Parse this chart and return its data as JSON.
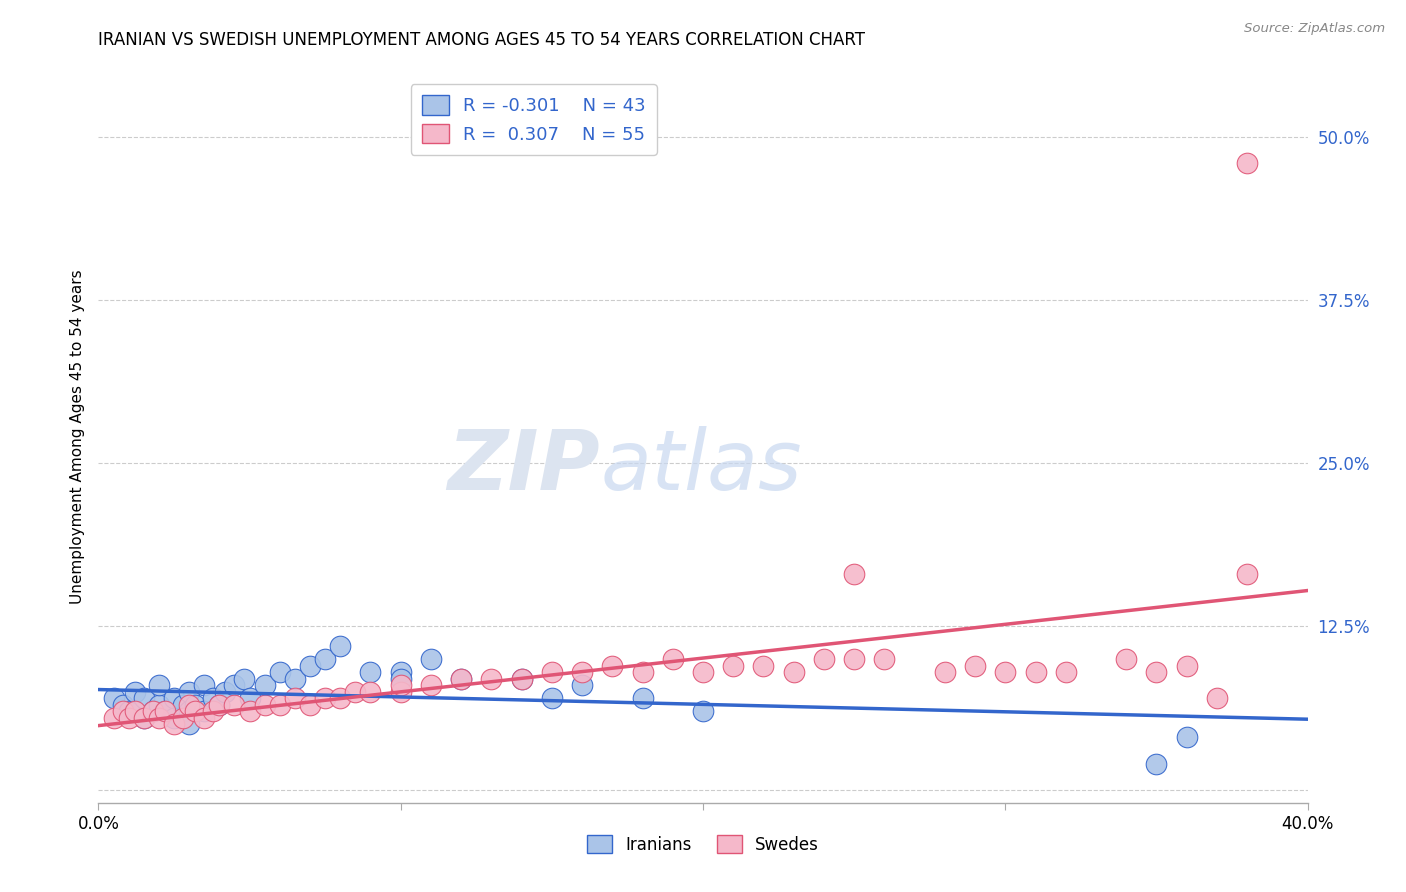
{
  "title": "IRANIAN VS SWEDISH UNEMPLOYMENT AMONG AGES 45 TO 54 YEARS CORRELATION CHART",
  "source": "Source: ZipAtlas.com",
  "ylabel": "Unemployment Among Ages 45 to 54 years",
  "xlim": [
    0.0,
    0.4
  ],
  "ylim": [
    -0.01,
    0.55
  ],
  "yticks": [
    0.0,
    0.125,
    0.25,
    0.375,
    0.5
  ],
  "ytick_labels": [
    "",
    "12.5%",
    "25.0%",
    "37.5%",
    "50.0%"
  ],
  "xticks": [
    0.0,
    0.1,
    0.2,
    0.3,
    0.4
  ],
  "xtick_labels": [
    "0.0%",
    "",
    "",
    "",
    "40.0%"
  ],
  "background_color": "#ffffff",
  "grid_color": "#cccccc",
  "iranian_color": "#aac4e8",
  "swedish_color": "#f5b8ca",
  "iranian_line_color": "#3366cc",
  "swedish_line_color": "#e05575",
  "legend_iranian_r": "-0.301",
  "legend_iranian_n": "43",
  "legend_swedish_r": "0.307",
  "legend_swedish_n": "55",
  "tick_color": "#3366cc",
  "iranians_x": [
    0.005,
    0.008,
    0.01,
    0.012,
    0.015,
    0.015,
    0.018,
    0.02,
    0.02,
    0.022,
    0.025,
    0.025,
    0.028,
    0.03,
    0.03,
    0.03,
    0.032,
    0.035,
    0.035,
    0.038,
    0.04,
    0.042,
    0.045,
    0.048,
    0.05,
    0.055,
    0.06,
    0.065,
    0.07,
    0.075,
    0.08,
    0.09,
    0.1,
    0.1,
    0.11,
    0.12,
    0.14,
    0.15,
    0.16,
    0.18,
    0.2,
    0.35,
    0.36
  ],
  "iranians_y": [
    0.07,
    0.065,
    0.06,
    0.075,
    0.07,
    0.055,
    0.06,
    0.065,
    0.08,
    0.06,
    0.07,
    0.055,
    0.065,
    0.075,
    0.06,
    0.05,
    0.065,
    0.08,
    0.06,
    0.07,
    0.065,
    0.075,
    0.08,
    0.085,
    0.07,
    0.08,
    0.09,
    0.085,
    0.095,
    0.1,
    0.11,
    0.09,
    0.09,
    0.085,
    0.1,
    0.085,
    0.085,
    0.07,
    0.08,
    0.07,
    0.06,
    0.02,
    0.04
  ],
  "swedes_x": [
    0.005,
    0.008,
    0.01,
    0.012,
    0.015,
    0.018,
    0.02,
    0.022,
    0.025,
    0.028,
    0.03,
    0.032,
    0.035,
    0.038,
    0.04,
    0.045,
    0.05,
    0.055,
    0.06,
    0.065,
    0.07,
    0.075,
    0.08,
    0.085,
    0.09,
    0.1,
    0.1,
    0.11,
    0.12,
    0.13,
    0.14,
    0.15,
    0.16,
    0.17,
    0.18,
    0.19,
    0.2,
    0.21,
    0.22,
    0.23,
    0.24,
    0.25,
    0.26,
    0.28,
    0.29,
    0.3,
    0.31,
    0.32,
    0.34,
    0.35,
    0.36,
    0.37,
    0.38,
    0.25,
    0.38
  ],
  "swedes_y": [
    0.055,
    0.06,
    0.055,
    0.06,
    0.055,
    0.06,
    0.055,
    0.06,
    0.05,
    0.055,
    0.065,
    0.06,
    0.055,
    0.06,
    0.065,
    0.065,
    0.06,
    0.065,
    0.065,
    0.07,
    0.065,
    0.07,
    0.07,
    0.075,
    0.075,
    0.075,
    0.08,
    0.08,
    0.085,
    0.085,
    0.085,
    0.09,
    0.09,
    0.095,
    0.09,
    0.1,
    0.09,
    0.095,
    0.095,
    0.09,
    0.1,
    0.1,
    0.1,
    0.09,
    0.095,
    0.09,
    0.09,
    0.09,
    0.1,
    0.09,
    0.095,
    0.07,
    0.165,
    0.165,
    0.48
  ],
  "watermark_zip": "ZIP",
  "watermark_atlas": "atlas",
  "watermark_color": "#dce4f0"
}
